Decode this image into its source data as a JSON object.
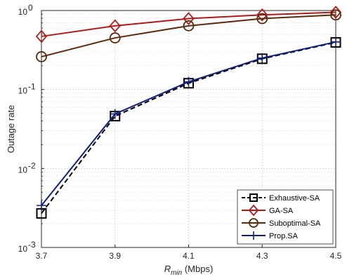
{
  "chart_data": {
    "type": "line",
    "x": [
      3.7,
      3.9,
      4.1,
      4.3,
      4.5
    ],
    "x_tick_labels": [
      "3.7",
      "3.9",
      "4.1",
      "4.3",
      "4.5"
    ],
    "xlim": [
      3.7,
      4.5
    ],
    "ylim": [
      0.001,
      1
    ],
    "y_scale": "log",
    "y_ticks": [
      {
        "value": 1,
        "base": "10",
        "exp": "0"
      },
      {
        "value": 0.1,
        "base": "10",
        "exp": "-1"
      },
      {
        "value": 0.01,
        "base": "10",
        "exp": "-2"
      },
      {
        "value": 0.001,
        "base": "10",
        "exp": "-3"
      }
    ],
    "xlabel": {
      "main": "R",
      "sub": "min",
      "unit": " (Mbps)"
    },
    "ylabel": "Outage rate",
    "grid": "on (major and minor)",
    "legend_position": "bottom-right",
    "series": [
      {
        "name": "Exhaustive-SA",
        "values": [
          0.0027,
          0.046,
          0.12,
          0.245,
          0.395
        ],
        "color": "#000000",
        "line": "dashed",
        "marker": "square"
      },
      {
        "name": "GA-SA",
        "values": [
          0.47,
          0.64,
          0.79,
          0.88,
          0.95
        ],
        "color": "#b01a1a",
        "line": "solid",
        "marker": "diamond"
      },
      {
        "name": "Suboptimal-SA",
        "values": [
          0.26,
          0.45,
          0.64,
          0.79,
          0.88
        ],
        "color": "#5a2a0c",
        "line": "solid",
        "marker": "circle"
      },
      {
        "name": "Prop.SA",
        "values": [
          0.0034,
          0.049,
          0.125,
          0.25,
          0.4
        ],
        "color": "#13207a",
        "line": "solid",
        "marker": "plus"
      }
    ]
  }
}
